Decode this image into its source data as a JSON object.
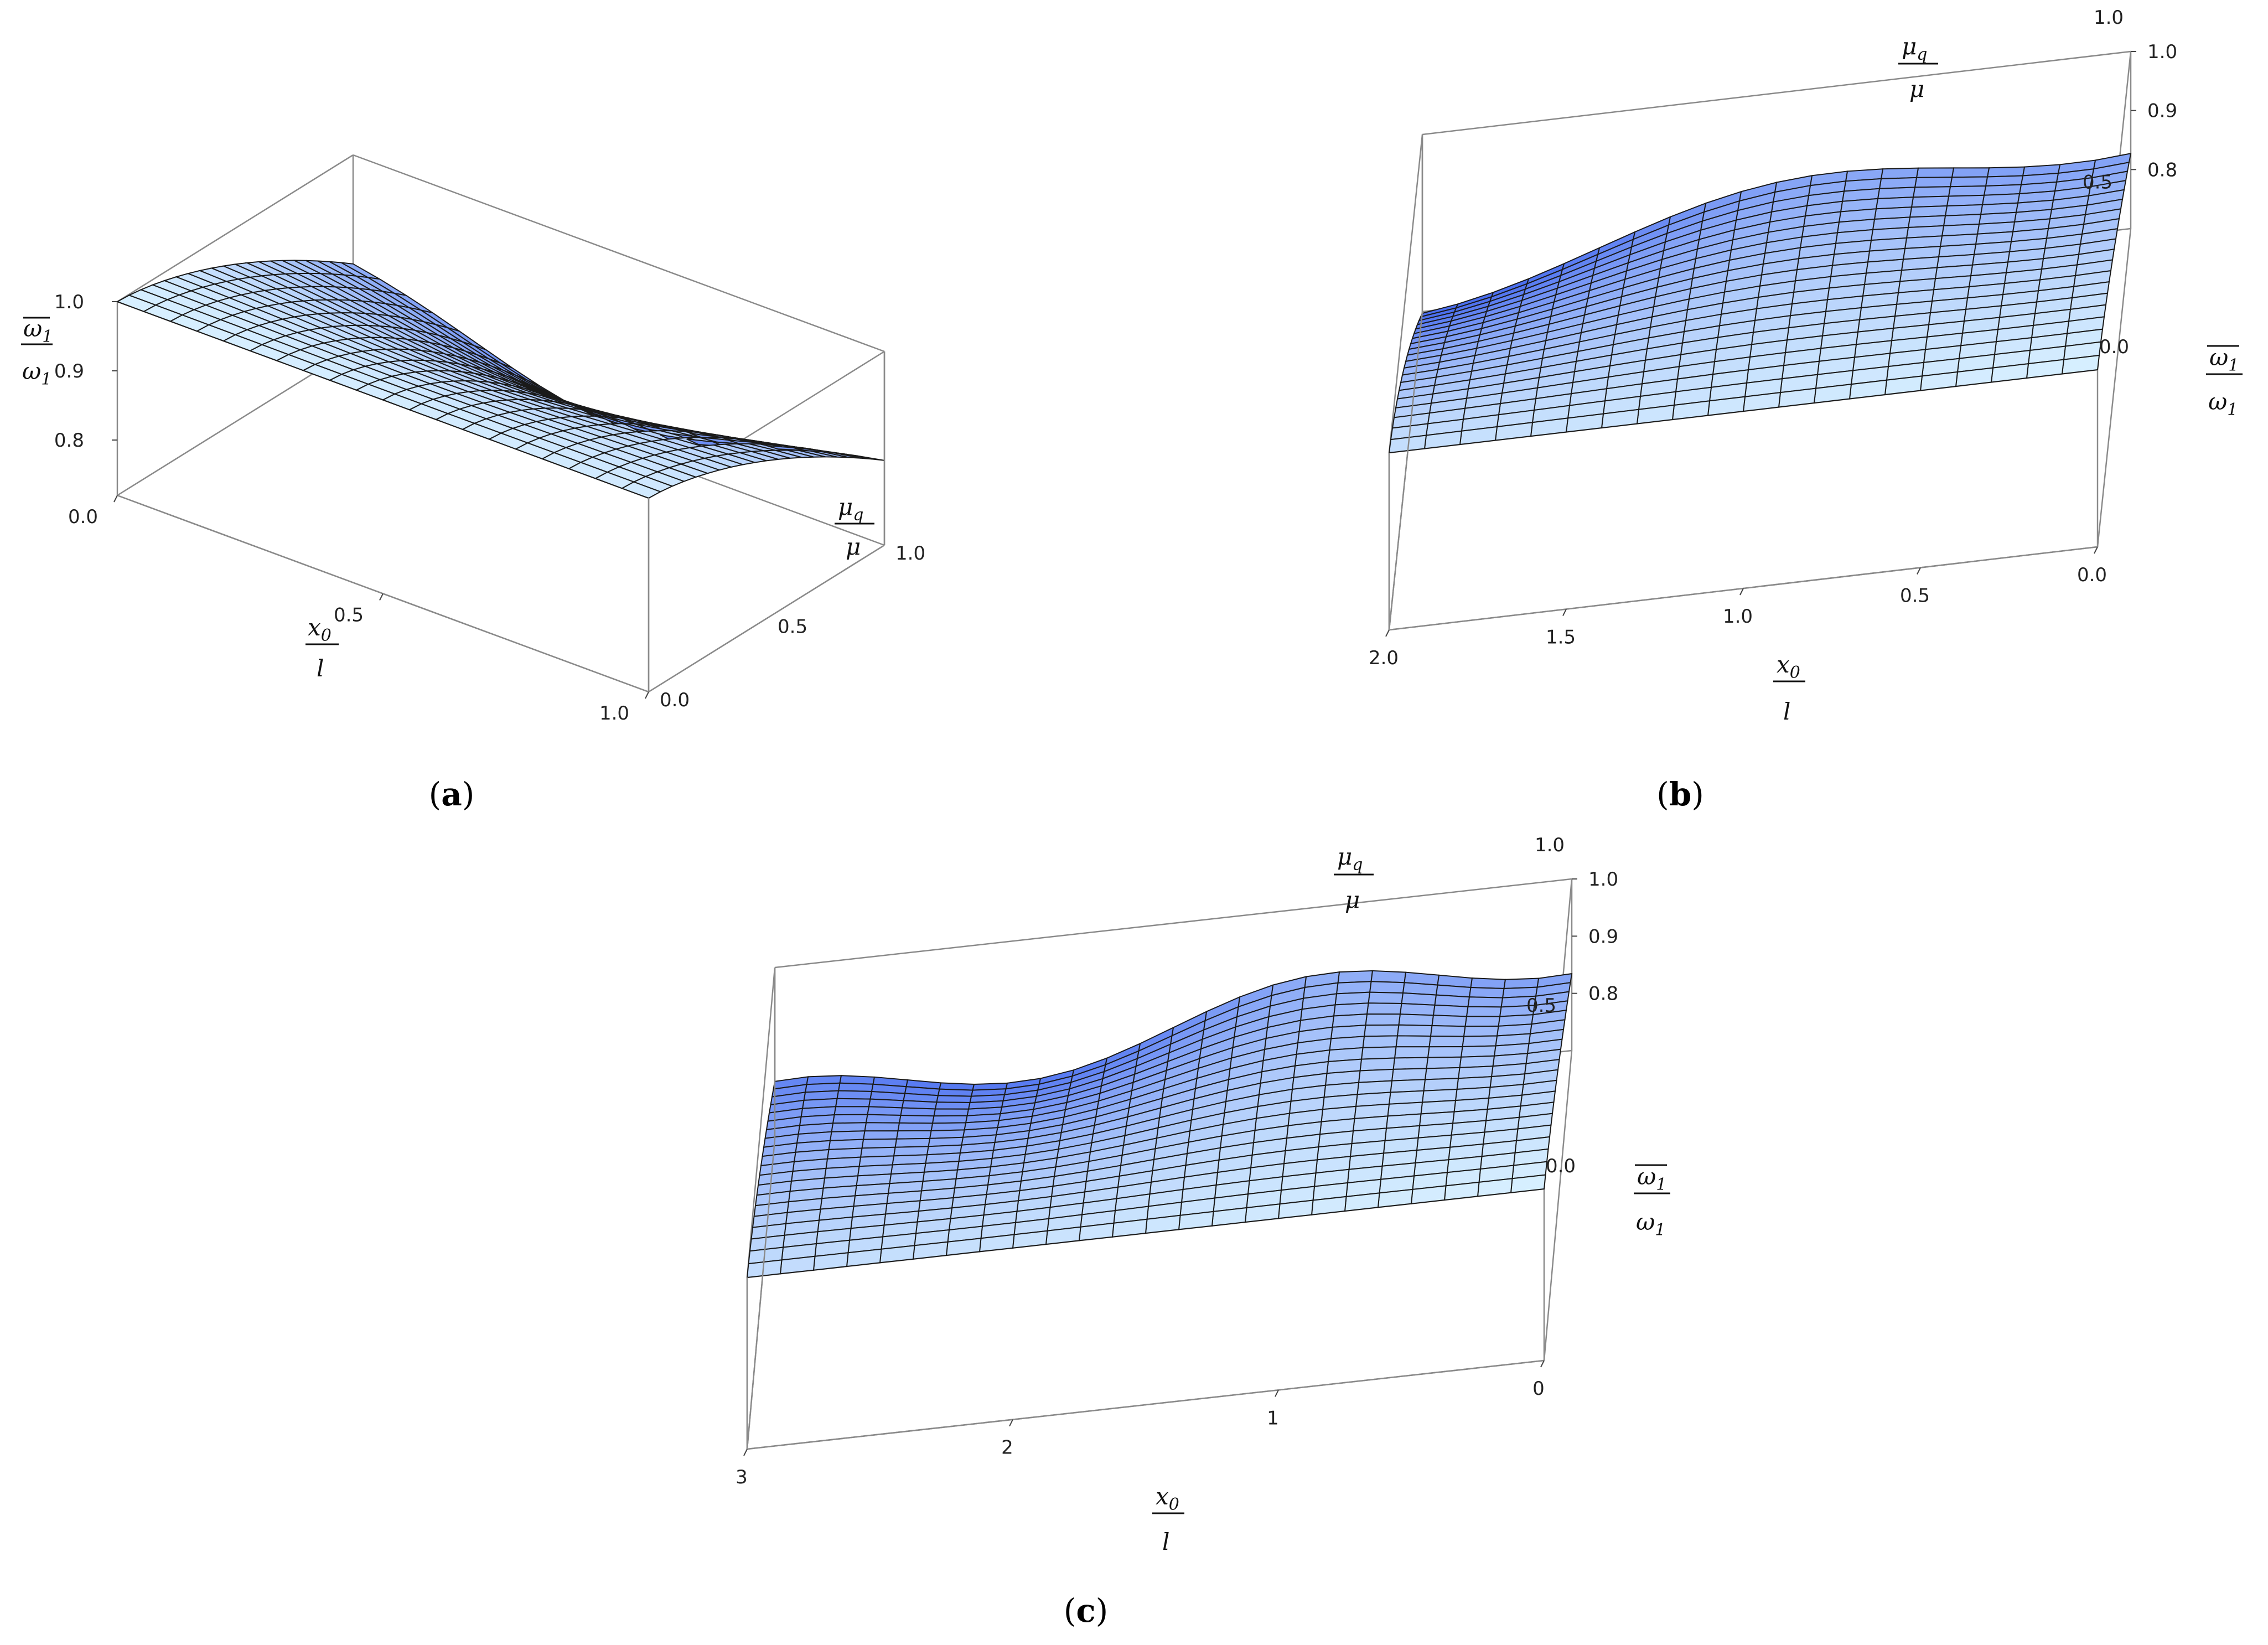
{
  "figure": {
    "panels": [
      {
        "label_open": "(",
        "label_letter": "a",
        "label_close": ")"
      },
      {
        "label_open": "(",
        "label_letter": "b",
        "label_close": ")"
      },
      {
        "label_open": "(",
        "label_letter": "c",
        "label_close": ")"
      }
    ]
  },
  "colors": {
    "surface_light": "#d8f0ff",
    "surface_dark": "#4a6ef0",
    "mesh": "#1a1a1a",
    "box": "#8a8a8a"
  },
  "chart_data": [
    {
      "type": "surface",
      "panel": "a",
      "x_axis": {
        "label_num": "x0",
        "label_num_base": "x",
        "label_num_sub": "0",
        "label_den": "l",
        "range": [
          0,
          1
        ],
        "ticks": [
          "0.0",
          "0.5",
          "1.0"
        ]
      },
      "y_axis": {
        "label_num": "μq",
        "label_num_base": "μ",
        "label_num_sub": "q",
        "label_den": "μ",
        "range": [
          0,
          1
        ],
        "ticks": [
          "0.0",
          "0.5",
          "1.0"
        ]
      },
      "z_axis": {
        "label_num": "ω1 (overbar)",
        "label_num_base": "ω",
        "label_num_sub": "1",
        "label_den": "ω1",
        "label_den_base": "ω",
        "label_den_sub": "1",
        "range": [
          0.72,
          1.0
        ],
        "ticks": [
          "0.8",
          "0.9",
          "1.0"
        ]
      },
      "mesh": {
        "nx": 20,
        "ny": 20
      },
      "description_of_surface": "z = 1 along mu_q/mu = 0; decreases smoothly to about 0.75 at x0/l = 0.5, mu_q/mu = 1"
    },
    {
      "type": "surface",
      "panel": "b",
      "x_axis": {
        "label_num": "x0",
        "label_num_base": "x",
        "label_num_sub": "0",
        "label_den": "l",
        "range": [
          0,
          2
        ],
        "ticks": [
          "0.0",
          "0.5",
          "1.0",
          "1.5",
          "2.0"
        ]
      },
      "y_axis": {
        "label_num": "μq",
        "label_num_base": "μ",
        "label_num_sub": "q",
        "label_den": "μ",
        "range": [
          0,
          1
        ],
        "ticks": [
          "0.0",
          "0.5",
          "1.0"
        ]
      },
      "z_axis": {
        "label_num": "ω1 (overbar)",
        "label_num_base": "ω",
        "label_num_sub": "1",
        "label_den": "ω1",
        "label_den_base": "ω",
        "label_den_sub": "1",
        "range": [
          0.7,
          1.0
        ],
        "ticks": [
          "0.8",
          "0.9",
          "1.0"
        ]
      },
      "mesh": {
        "nx": 20,
        "ny": 20
      },
      "description_of_surface": "z = 1 along mu_q/mu = 0; dips with two troughs along mu_q/mu = 1"
    },
    {
      "type": "surface",
      "panel": "c",
      "x_axis": {
        "label_num": "x0",
        "label_num_base": "x",
        "label_num_sub": "0",
        "label_den": "l",
        "range": [
          0,
          3
        ],
        "ticks": [
          "0",
          "1",
          "2",
          "3"
        ]
      },
      "y_axis": {
        "label_num": "μq",
        "label_num_base": "μ",
        "label_num_sub": "q",
        "label_den": "μ",
        "range": [
          0,
          1
        ],
        "ticks": [
          "0.0",
          "0.5",
          "1.0"
        ]
      },
      "z_axis": {
        "label_num": "ω1 (overbar)",
        "label_num_base": "ω",
        "label_num_sub": "1",
        "label_den": "ω1",
        "label_den_base": "ω",
        "label_den_sub": "1",
        "range": [
          0.7,
          1.0
        ],
        "ticks": [
          "0.8",
          "0.9",
          "1.0"
        ]
      },
      "mesh": {
        "nx": 24,
        "ny": 20
      },
      "description_of_surface": "z = 1 along mu_q/mu = 0; dips with three troughs along mu_q/mu = 1"
    }
  ]
}
